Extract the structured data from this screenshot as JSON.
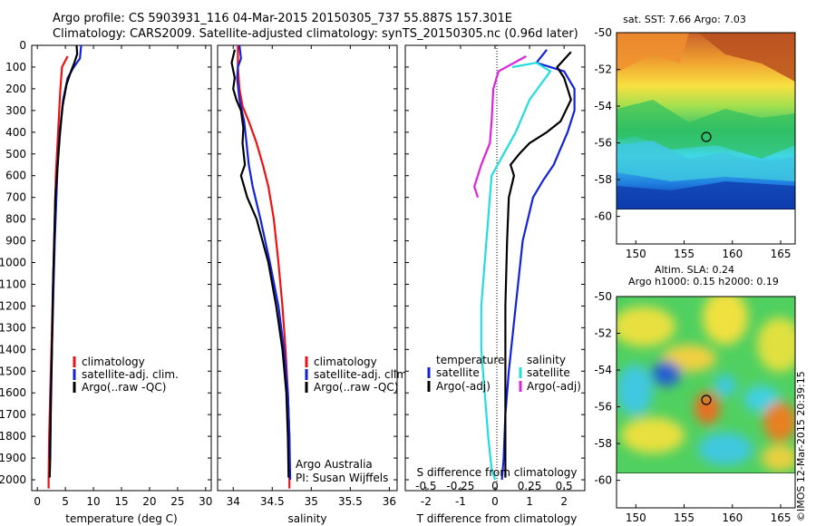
{
  "header": {
    "line1": "Argo profile: CS 5903931_116 04-Mar-2015 20150305_737 55.887S 157.301E",
    "line2": "Climatology: CARS2009. Satellite-adjusted climatology: synTS_20150305.nc (0.96d later)"
  },
  "credit": "©IMOS 12-Mar-2015 20:39:15",
  "colors": {
    "red": "#ee1111",
    "blue": "#1122dd",
    "black": "#000000",
    "cyan": "#22dddd",
    "magenta": "#dd22dd"
  },
  "chart_data": [
    {
      "type": "line",
      "xlabel": "temperature (deg C)",
      "xlim": [
        -1,
        31
      ],
      "xticks": [
        "0",
        "5",
        "10",
        "15",
        "20",
        "25",
        "30"
      ],
      "ylim": [
        0,
        2050
      ],
      "yticks": [
        "0",
        "100",
        "200",
        "300",
        "400",
        "500",
        "600",
        "700",
        "800",
        "900",
        "1000",
        "1100",
        "1200",
        "1300",
        "1400",
        "1500",
        "1600",
        "1700",
        "1800",
        "1900",
        "2000"
      ],
      "legend": [
        "climatology",
        "satellite-adj. clim.",
        "Argo(..raw -QC)"
      ],
      "series": [
        {
          "name": "climatology",
          "color": "red",
          "points": [
            [
              5.4,
              50
            ],
            [
              4.4,
              100
            ],
            [
              4.1,
              200
            ],
            [
              3.9,
              300
            ],
            [
              3.7,
              400
            ],
            [
              3.5,
              500
            ],
            [
              3.3,
              600
            ],
            [
              3.1,
              800
            ],
            [
              2.9,
              1000
            ],
            [
              2.7,
              1200
            ],
            [
              2.5,
              1400
            ],
            [
              2.3,
              1600
            ],
            [
              2.1,
              1800
            ],
            [
              2.0,
              2000
            ],
            [
              2.0,
              2040
            ]
          ]
        },
        {
          "name": "satellite-adj. clim.",
          "color": "blue",
          "points": [
            [
              7.8,
              0
            ],
            [
              7.6,
              60
            ],
            [
              6.5,
              100
            ],
            [
              5.4,
              150
            ],
            [
              4.6,
              250
            ],
            [
              4.0,
              400
            ],
            [
              3.6,
              550
            ],
            [
              3.4,
              700
            ],
            [
              3.1,
              900
            ],
            [
              2.9,
              1100
            ],
            [
              2.6,
              1400
            ],
            [
              2.4,
              1600
            ],
            [
              2.3,
              1800
            ],
            [
              2.2,
              1900
            ]
          ]
        },
        {
          "name": "Argo(..raw -QC)",
          "color": "black",
          "points": [
            [
              7.0,
              0
            ],
            [
              7.1,
              40
            ],
            [
              6.6,
              80
            ],
            [
              6.0,
              120
            ],
            [
              5.2,
              180
            ],
            [
              4.5,
              280
            ],
            [
              4.0,
              420
            ],
            [
              3.6,
              560
            ],
            [
              3.2,
              700
            ],
            [
              3.0,
              900
            ],
            [
              2.8,
              1100
            ],
            [
              2.6,
              1400
            ],
            [
              2.4,
              1700
            ],
            [
              2.3,
              1900
            ],
            [
              2.2,
              1990
            ]
          ]
        }
      ]
    },
    {
      "type": "line",
      "xlabel": "salinity",
      "xlim": [
        33.8,
        36.1
      ],
      "xticks": [
        "34",
        "34.5",
        "35",
        "35.5",
        "36"
      ],
      "ylim": [
        0,
        2050
      ],
      "legend": [
        "climatology",
        "satellite-adj. clim.",
        "Argo(..raw -QC)"
      ],
      "annotation": [
        "Argo Australia",
        "PI: Susan Wijffels"
      ],
      "series": [
        {
          "name": "climatology",
          "color": "red",
          "points": [
            [
              34.06,
              0
            ],
            [
              34.06,
              100
            ],
            [
              34.08,
              200
            ],
            [
              34.12,
              280
            ],
            [
              34.2,
              350
            ],
            [
              34.3,
              450
            ],
            [
              34.38,
              550
            ],
            [
              34.45,
              650
            ],
            [
              34.52,
              800
            ],
            [
              34.58,
              1000
            ],
            [
              34.63,
              1200
            ],
            [
              34.67,
              1400
            ],
            [
              34.7,
              1600
            ],
            [
              34.72,
              1800
            ],
            [
              34.72,
              2040
            ]
          ]
        },
        {
          "name": "satellite-adj. clim.",
          "color": "blue",
          "points": [
            [
              34.08,
              0
            ],
            [
              34.1,
              60
            ],
            [
              34.06,
              100
            ],
            [
              34.05,
              150
            ],
            [
              34.08,
              250
            ],
            [
              34.14,
              350
            ],
            [
              34.17,
              450
            ],
            [
              34.2,
              550
            ],
            [
              34.25,
              650
            ],
            [
              34.35,
              800
            ],
            [
              34.47,
              1000
            ],
            [
              34.58,
              1200
            ],
            [
              34.65,
              1400
            ],
            [
              34.7,
              1600
            ],
            [
              34.72,
              1800
            ],
            [
              34.73,
              2000
            ]
          ]
        },
        {
          "name": "Argo(..raw -QC)",
          "color": "black",
          "points": [
            [
              34.02,
              20
            ],
            [
              33.98,
              80
            ],
            [
              34.02,
              150
            ],
            [
              34.0,
              200
            ],
            [
              34.04,
              250
            ],
            [
              34.1,
              300
            ],
            [
              34.13,
              380
            ],
            [
              34.12,
              450
            ],
            [
              34.15,
              550
            ],
            [
              34.1,
              600
            ],
            [
              34.18,
              700
            ],
            [
              34.3,
              800
            ],
            [
              34.45,
              1000
            ],
            [
              34.55,
              1200
            ],
            [
              34.63,
              1400
            ],
            [
              34.68,
              1600
            ],
            [
              34.7,
              1800
            ],
            [
              34.71,
              1990
            ]
          ]
        }
      ]
    },
    {
      "type": "line",
      "xlabel": "T difference from climatology",
      "xlabel_top": "S difference from climatology",
      "xlim": [
        -2.6,
        2.6
      ],
      "xticks": [
        "-2",
        "-1",
        "0",
        "1",
        "2"
      ],
      "xticks_top": [
        "-0.5",
        "-0.25",
        "0",
        "0.25",
        "0.5"
      ],
      "ylim": [
        0,
        2050
      ],
      "legend_temperature": [
        "temperature",
        "satellite",
        "Argo(-adj)"
      ],
      "legend_salinity": [
        "salinity",
        "satellite",
        "Argo(-adj)"
      ],
      "series": [
        {
          "name": "satellite",
          "color": "blue",
          "points": [
            [
              1.5,
              20
            ],
            [
              1.2,
              80
            ],
            [
              2.0,
              120
            ],
            [
              2.3,
              200
            ],
            [
              2.3,
              300
            ],
            [
              2.1,
              400
            ],
            [
              1.7,
              550
            ],
            [
              1.4,
              620
            ],
            [
              1.1,
              700
            ],
            [
              0.8,
              900
            ],
            [
              0.6,
              1200
            ],
            [
              0.4,
              1500
            ],
            [
              0.3,
              1700
            ],
            [
              0.25,
              1900
            ],
            [
              0.2,
              2000
            ]
          ]
        },
        {
          "name": "Argo(-adj)",
          "color": "black",
          "points": [
            [
              2.2,
              30
            ],
            [
              1.8,
              100
            ],
            [
              2.0,
              150
            ],
            [
              2.2,
              250
            ],
            [
              1.9,
              350
            ],
            [
              1.5,
              400
            ],
            [
              1.0,
              450
            ],
            [
              0.7,
              500
            ],
            [
              0.45,
              550
            ],
            [
              0.55,
              600
            ],
            [
              0.4,
              700
            ],
            [
              0.35,
              900
            ],
            [
              0.3,
              1200
            ],
            [
              0.3,
              1500
            ],
            [
              0.3,
              1800
            ],
            [
              0.3,
              1990
            ]
          ]
        },
        {
          "name": "satellite",
          "color": "cyan",
          "points": [
            [
              0.5,
              100
            ],
            [
              1.2,
              80
            ],
            [
              1.6,
              120
            ],
            [
              1.0,
              250
            ],
            [
              0.6,
              400
            ],
            [
              -0.1,
              600
            ],
            [
              -0.2,
              800
            ],
            [
              -0.3,
              1000
            ],
            [
              -0.4,
              1200
            ],
            [
              -0.4,
              1400
            ],
            [
              -0.3,
              1600
            ],
            [
              -0.2,
              1800
            ],
            [
              -0.1,
              1950
            ],
            [
              0.0,
              2000
            ]
          ]
        },
        {
          "name": "Argo(-adj)",
          "color": "magenta",
          "points": [
            [
              0.9,
              50
            ],
            [
              0.1,
              120
            ],
            [
              -0.05,
              200
            ],
            [
              -0.1,
              350
            ],
            [
              -0.15,
              450
            ],
            [
              -0.4,
              550
            ],
            [
              -0.6,
              650
            ],
            [
              -0.5,
              700
            ]
          ]
        }
      ]
    },
    {
      "type": "heatmap",
      "title": "sat. SST: 7.66 Argo: 7.03",
      "xlim": [
        148,
        166.5
      ],
      "ylim": [
        -61.5,
        -50
      ],
      "xticks": [
        "150",
        "155",
        "160",
        "165"
      ],
      "yticks": [
        "-50",
        "-52",
        "-54",
        "-56",
        "-58",
        "-60"
      ],
      "marker": {
        "lon": 157.3,
        "lat": -55.9
      }
    },
    {
      "type": "heatmap",
      "title": "Altim. SLA: 0.24",
      "subtitle": "Argo h1000: 0.15 h2000: 0.19",
      "xlim": [
        148,
        166.5
      ],
      "ylim": [
        -61.5,
        -50
      ],
      "xticks": [
        "150",
        "155",
        "160",
        "165"
      ],
      "yticks": [
        "-50",
        "-52",
        "-54",
        "-56",
        "-58",
        "-60"
      ],
      "marker": {
        "lon": 157.3,
        "lat": -55.9
      }
    }
  ]
}
